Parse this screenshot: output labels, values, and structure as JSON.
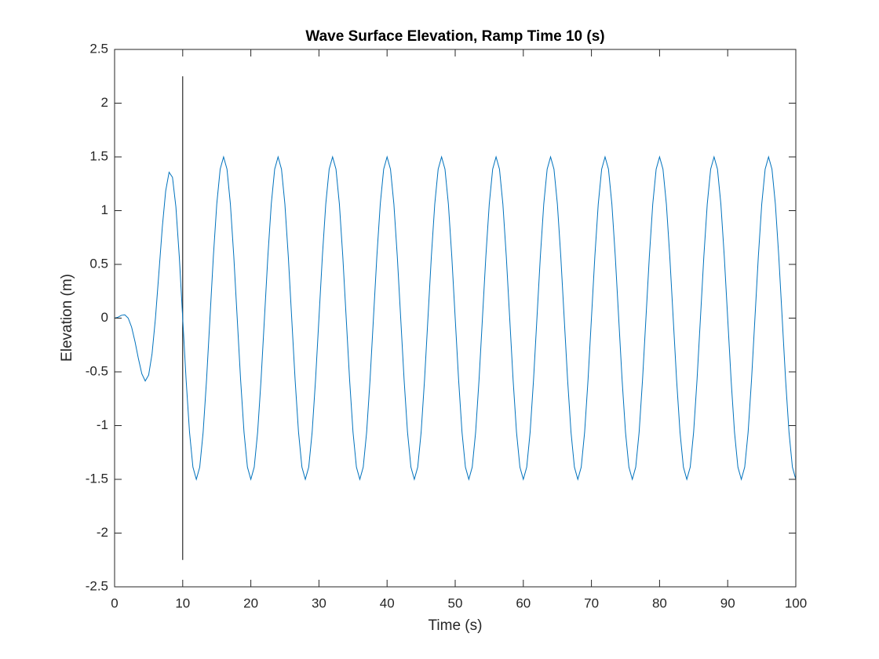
{
  "chart_data": {
    "type": "line",
    "title": "Wave Surface Elevation, Ramp Time 10 (s)",
    "x_label": "Time (s)",
    "y_label": "Elevation (m)",
    "xlim": [
      0,
      100
    ],
    "ylim": [
      -2.5,
      2.5
    ],
    "xticks": [
      0,
      10,
      20,
      30,
      40,
      50,
      60,
      70,
      80,
      90,
      100
    ],
    "yticks": [
      -2.5,
      -2,
      -1.5,
      -1,
      -0.5,
      0,
      0.5,
      1,
      1.5,
      2,
      2.5
    ],
    "vline": {
      "x": 10,
      "ymin": -2.25,
      "ymax": 2.25,
      "color": "#000000"
    },
    "x": [
      0,
      0.5,
      1,
      1.5,
      2,
      2.5,
      3,
      3.5,
      4,
      4.5,
      5,
      5.5,
      6,
      6.5,
      7,
      7.5,
      8,
      8.5,
      9,
      9.5,
      10,
      10.5,
      11,
      11.5,
      12,
      12.5,
      13,
      13.5,
      14,
      14.5,
      15,
      15.5,
      16,
      16.5,
      17,
      17.5,
      18,
      18.5,
      19,
      19.5,
      20,
      20.5,
      21,
      21.5,
      22,
      22.5,
      23,
      23.5,
      24,
      24.5,
      25,
      25.5,
      26,
      26.5,
      27,
      27.5,
      28,
      28.5,
      29,
      29.5,
      30,
      30.5,
      31,
      31.5,
      32,
      32.5,
      33,
      33.5,
      34,
      34.5,
      35,
      35.5,
      36,
      36.5,
      37,
      37.5,
      38,
      38.5,
      39,
      39.5,
      40,
      40.5,
      41,
      41.5,
      42,
      42.5,
      43,
      43.5,
      44,
      44.5,
      45,
      45.5,
      46,
      46.5,
      47,
      47.5,
      48,
      48.5,
      49,
      49.5,
      50,
      50.5,
      51,
      51.5,
      52,
      52.5,
      53,
      53.5,
      54,
      54.5,
      55,
      55.5,
      56,
      56.5,
      57,
      57.5,
      58,
      58.5,
      59,
      59.5,
      60,
      60.5,
      61,
      61.5,
      62,
      62.5,
      63,
      63.5,
      64,
      64.5,
      65,
      65.5,
      66,
      66.5,
      67,
      67.5,
      68,
      68.5,
      69,
      69.5,
      70,
      70.5,
      71,
      71.5,
      72,
      72.5,
      73,
      73.5,
      74,
      74.5,
      75,
      75.5,
      76,
      76.5,
      77,
      77.5,
      78,
      78.5,
      79,
      79.5,
      80,
      80.5,
      81,
      81.5,
      82,
      82.5,
      83,
      83.5,
      84,
      84.5,
      85,
      85.5,
      86,
      86.5,
      87,
      87.5,
      88,
      88.5,
      89,
      89.5,
      90,
      90.5,
      91,
      91.5,
      92,
      92.5,
      93,
      93.5,
      94,
      94.5,
      95,
      95.5,
      96,
      96.5,
      97,
      97.5,
      98,
      98.5,
      99,
      99.5,
      100
    ],
    "series": [
      {
        "color": "#0072BD",
        "values": [
          0,
          0.0085,
          0.026,
          0.031,
          0,
          -0.084,
          -0.219,
          -0.378,
          -0.518,
          -0.585,
          -0.53,
          -0.332,
          0,
          0.417,
          0.842,
          1.183,
          1.357,
          1.31,
          1.035,
          0.57,
          0,
          -0.574,
          -1.061,
          -1.386,
          -1.5,
          -1.386,
          -1.061,
          -0.574,
          0,
          0.574,
          1.061,
          1.386,
          1.5,
          1.386,
          1.061,
          0.574,
          0,
          -0.574,
          -1.061,
          -1.386,
          -1.5,
          -1.386,
          -1.061,
          -0.574,
          0,
          0.574,
          1.061,
          1.386,
          1.5,
          1.386,
          1.061,
          0.574,
          0,
          -0.574,
          -1.061,
          -1.386,
          -1.5,
          -1.386,
          -1.061,
          -0.574,
          0,
          0.574,
          1.061,
          1.386,
          1.5,
          1.386,
          1.061,
          0.574,
          0,
          -0.574,
          -1.061,
          -1.386,
          -1.5,
          -1.386,
          -1.061,
          -0.574,
          0,
          0.574,
          1.061,
          1.386,
          1.5,
          1.386,
          1.061,
          0.574,
          0,
          -0.574,
          -1.061,
          -1.386,
          -1.5,
          -1.386,
          -1.061,
          -0.574,
          0,
          0.574,
          1.061,
          1.386,
          1.5,
          1.386,
          1.061,
          0.574,
          0,
          -0.574,
          -1.061,
          -1.386,
          -1.5,
          -1.386,
          -1.061,
          -0.574,
          0,
          0.574,
          1.061,
          1.386,
          1.5,
          1.386,
          1.061,
          0.574,
          0,
          -0.574,
          -1.061,
          -1.386,
          -1.5,
          -1.386,
          -1.061,
          -0.574,
          0,
          0.574,
          1.061,
          1.386,
          1.5,
          1.386,
          1.061,
          0.574,
          0,
          -0.574,
          -1.061,
          -1.386,
          -1.5,
          -1.386,
          -1.061,
          -0.574,
          0,
          0.574,
          1.061,
          1.386,
          1.5,
          1.386,
          1.061,
          0.574,
          0,
          -0.574,
          -1.061,
          -1.386,
          -1.5,
          -1.386,
          -1.061,
          -0.574,
          0,
          0.574,
          1.061,
          1.386,
          1.5,
          1.386,
          1.061,
          0.574,
          0,
          -0.574,
          -1.061,
          -1.386,
          -1.5,
          -1.386,
          -1.061,
          -0.574,
          0,
          0.574,
          1.061,
          1.386,
          1.5,
          1.386,
          1.061,
          0.574,
          0,
          -0.574,
          -1.061,
          -1.386,
          -1.5,
          -1.386,
          -1.061,
          -0.574,
          0,
          0.574,
          1.061,
          1.386,
          1.5,
          1.386,
          1.061,
          0.574,
          0,
          -0.574,
          -1.061,
          -1.386,
          -1.5
        ]
      }
    ]
  }
}
